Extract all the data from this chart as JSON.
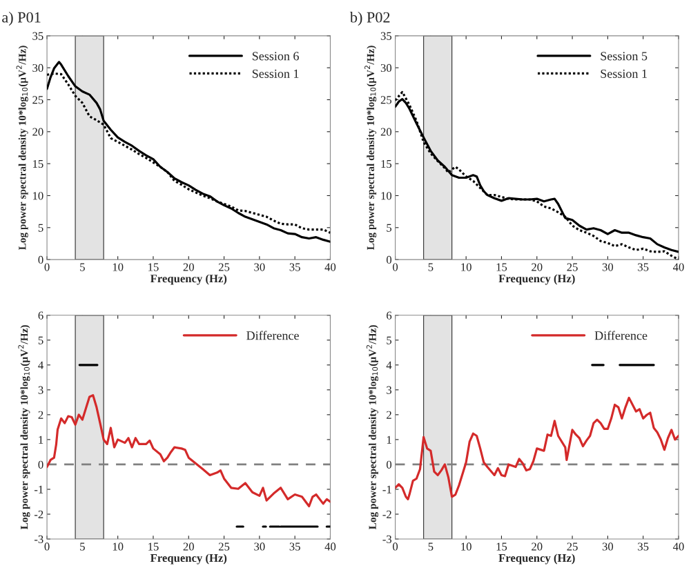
{
  "chart_data": [
    {
      "type": "line",
      "title": "a) P01",
      "xlabel": "Frequency (Hz)",
      "ylabel": "Log power spectral density 10*log$_{10}$(μV$^{2}$/Hz)",
      "xlim": [
        0,
        40
      ],
      "ylim": [
        0,
        35
      ],
      "xticks": [
        0,
        5,
        10,
        15,
        20,
        25,
        30,
        35,
        40
      ],
      "yticks": [
        0,
        5,
        10,
        15,
        20,
        25,
        30,
        35
      ],
      "grid": false,
      "legend": "top right",
      "bands": [
        {
          "axis": "x",
          "from": 4,
          "to": 8,
          "color": "#e3e3e3"
        }
      ],
      "series": [
        {
          "name": "Session 6",
          "color": "#000000",
          "line_style": "solid",
          "x": [
            0,
            0.5,
            1,
            1.7,
            2,
            3,
            4,
            5,
            6,
            7,
            7.5,
            8,
            9,
            10,
            11,
            12,
            13,
            14,
            15,
            16,
            17,
            18,
            19,
            20,
            21,
            22,
            23,
            24,
            25,
            26,
            27,
            28,
            29,
            30,
            31,
            32,
            33,
            34,
            35,
            36,
            37,
            38,
            39,
            40
          ],
          "values": [
            26.7,
            28.5,
            29.9,
            30.9,
            30.5,
            28.7,
            27.1,
            26.3,
            25.8,
            24.5,
            23.5,
            21.7,
            20.3,
            19.1,
            18.4,
            17.8,
            17.0,
            16.3,
            15.7,
            14.5,
            13.7,
            12.7,
            12.1,
            11.6,
            10.9,
            10.3,
            9.9,
            9.1,
            8.5,
            8.0,
            7.3,
            6.7,
            6.3,
            5.9,
            5.5,
            4.9,
            4.6,
            4.1,
            4.0,
            3.5,
            3.3,
            3.5,
            3.1,
            2.8
          ]
        },
        {
          "name": "Session 1",
          "color": "#000000",
          "line_style": "dotted",
          "x": [
            0,
            1,
            2,
            3,
            4,
            5,
            6,
            7,
            8,
            9,
            10,
            11,
            12,
            13,
            14,
            15,
            16,
            17,
            18,
            19,
            20,
            21,
            22,
            23,
            24,
            25,
            26,
            27,
            28,
            29,
            30,
            31,
            32,
            33,
            34,
            35,
            36,
            37,
            38,
            39,
            40
          ],
          "values": [
            28.9,
            29.1,
            29.0,
            27.4,
            25.6,
            24.5,
            22.4,
            21.8,
            21.1,
            19.0,
            18.4,
            17.8,
            17.2,
            16.5,
            15.9,
            15.2,
            14.5,
            13.7,
            12.3,
            11.7,
            11.0,
            10.5,
            10.0,
            9.6,
            9.1,
            8.7,
            8.3,
            7.7,
            7.6,
            7.3,
            7.0,
            6.7,
            6.1,
            5.6,
            5.5,
            5.5,
            4.9,
            4.7,
            4.7,
            4.7,
            4.2
          ]
        }
      ]
    },
    {
      "type": "line",
      "title": "b) P02",
      "xlabel": "Frequency (Hz)",
      "ylabel": "Log power spectral density 10*log$_{10}$(μV$^{2}$/Hz)",
      "xlim": [
        0,
        40
      ],
      "ylim": [
        0,
        35
      ],
      "xticks": [
        0,
        5,
        10,
        15,
        20,
        25,
        30,
        35,
        40
      ],
      "yticks": [
        0,
        5,
        10,
        15,
        20,
        25,
        30,
        35
      ],
      "grid": false,
      "legend": "top right",
      "bands": [
        {
          "axis": "x",
          "from": 4,
          "to": 8,
          "color": "#e3e3e3"
        }
      ],
      "series": [
        {
          "name": "Session 5",
          "color": "#000000",
          "line_style": "solid",
          "x": [
            0,
            0.5,
            1,
            1.5,
            2,
            3,
            3.5,
            4,
            5,
            6,
            7,
            8,
            9,
            10,
            11,
            11.5,
            12,
            12.5,
            13,
            14,
            15,
            16,
            17,
            18,
            19,
            20,
            21,
            22,
            22.5,
            23,
            24,
            25,
            26,
            27,
            28,
            29,
            30,
            31,
            32,
            33,
            34,
            35,
            36,
            37,
            38,
            39,
            40
          ],
          "values": [
            23.9,
            24.7,
            25.1,
            24.5,
            23.6,
            21.3,
            20.2,
            19.1,
            17.0,
            15.5,
            14.5,
            13.2,
            12.8,
            12.8,
            13.2,
            13.0,
            11.6,
            10.7,
            10.1,
            9.6,
            9.2,
            9.6,
            9.5,
            9.4,
            9.4,
            9.5,
            9.1,
            9.4,
            9.5,
            8.7,
            6.5,
            6.2,
            5.3,
            4.7,
            4.9,
            4.6,
            4.0,
            4.6,
            4.2,
            4.2,
            3.8,
            3.5,
            3.3,
            2.4,
            1.9,
            1.5,
            1.2
          ]
        },
        {
          "name": "Session 1",
          "color": "#000000",
          "line_style": "dotted",
          "x": [
            0,
            1,
            2,
            3,
            4,
            5,
            6,
            7,
            7.5,
            8,
            8.5,
            9,
            10,
            11,
            12,
            13,
            14,
            15,
            16,
            17,
            18,
            19,
            20,
            21,
            22,
            23,
            24,
            25,
            26,
            27,
            28,
            29,
            30,
            31,
            32,
            33,
            34,
            35,
            36,
            37,
            38,
            39,
            40
          ],
          "values": [
            24.9,
            26.2,
            24.2,
            21.7,
            18.4,
            16.6,
            15.4,
            14.3,
            13.6,
            14.1,
            14.5,
            14.1,
            13.0,
            12.3,
            11.2,
            10.1,
            10.1,
            9.8,
            9.5,
            9.4,
            9.4,
            9.4,
            9.1,
            8.3,
            8.0,
            7.4,
            6.7,
            5.3,
            4.6,
            4.2,
            3.7,
            2.9,
            2.6,
            2.1,
            2.4,
            1.9,
            1.5,
            1.7,
            1.3,
            1.2,
            1.3,
            0.6,
            0
          ]
        }
      ]
    },
    {
      "type": "line",
      "xlabel": "Frequency (Hz)",
      "ylabel": "Log power spectral density 10*log$_{10}$(μV$^{2}$/Hz)",
      "xlim": [
        0,
        40
      ],
      "ylim": [
        -3,
        6
      ],
      "xticks": [
        0,
        5,
        10,
        15,
        20,
        25,
        30,
        35,
        40
      ],
      "yticks": [
        -3,
        -2,
        -1,
        0,
        1,
        2,
        3,
        4,
        5,
        6
      ],
      "grid": false,
      "legend": "top right",
      "bands": [
        {
          "axis": "x",
          "from": 4,
          "to": 8,
          "color": "#e3e3e3"
        }
      ],
      "ref_lines": [
        {
          "axis": "y",
          "value": 0,
          "color": "#808080",
          "line_style": "dashed"
        }
      ],
      "series": [
        {
          "name": "Difference",
          "color": "#d42a2a",
          "line_style": "solid",
          "x": [
            0,
            0.5,
            1,
            1.3,
            1.5,
            2,
            2.5,
            3,
            3.5,
            4,
            4.5,
            5,
            5.5,
            6,
            6.5,
            7,
            7.5,
            8,
            8.5,
            9,
            9.5,
            10,
            11,
            11.5,
            12,
            12.5,
            13,
            14,
            14.5,
            15,
            16,
            16.5,
            17,
            17.5,
            18,
            19,
            19.5,
            20,
            21,
            22,
            23,
            24,
            24.5,
            25,
            26,
            27,
            28,
            29,
            30,
            30.5,
            31,
            32,
            33,
            34,
            35,
            36,
            37,
            37.5,
            38,
            39,
            39.5,
            40
          ],
          "values": [
            -0.1,
            0.18,
            0.27,
            0.8,
            1.4,
            1.85,
            1.66,
            1.94,
            1.9,
            1.6,
            2.0,
            1.8,
            2.26,
            2.72,
            2.78,
            2.3,
            1.66,
            1.0,
            0.82,
            1.47,
            0.69,
            1.0,
            0.87,
            1.06,
            0.69,
            1.06,
            0.82,
            0.82,
            0.96,
            0.64,
            0.41,
            0.13,
            0.27,
            0.5,
            0.69,
            0.64,
            0.59,
            0.27,
            0.04,
            -0.19,
            -0.43,
            -0.33,
            -0.24,
            -0.57,
            -0.94,
            -0.98,
            -0.75,
            -1.12,
            -1.26,
            -0.94,
            -1.45,
            -1.17,
            -0.94,
            -1.4,
            -1.21,
            -1.3,
            -1.68,
            -1.3,
            -1.21,
            -1.58,
            -1.4,
            -1.5
          ]
        },
        {
          "color": "#000000",
          "line_style": "solid",
          "x": [
            4.6,
            7.1
          ],
          "values": [
            4,
            4
          ]
        },
        {
          "color": "#000000",
          "line_style": "solid",
          "x": [
            26.8,
            27.7,
            27.8,
            30.5,
            30.9,
            31.0,
            31.5,
            32.8,
            32.9,
            33.0,
            38.2,
            38.3,
            39.5,
            40
          ],
          "values": [
            -2.5,
            -2.5,
            null,
            -2.5,
            -2.5,
            null,
            -2.5,
            -2.5,
            null,
            -2.5,
            -2.5,
            null,
            -2.5,
            -2.5
          ]
        }
      ]
    },
    {
      "type": "line",
      "xlabel": "Frequency (Hz)",
      "ylabel": "Log power spectral density 10*log$_{10}$(μV$^{2}$/Hz)",
      "xlim": [
        0,
        40
      ],
      "ylim": [
        -3,
        6
      ],
      "xticks": [
        0,
        5,
        10,
        15,
        20,
        25,
        30,
        35,
        40
      ],
      "yticks": [
        -3,
        -2,
        -1,
        0,
        1,
        2,
        3,
        4,
        5,
        6
      ],
      "grid": false,
      "legend": "top right",
      "bands": [
        {
          "axis": "x",
          "from": 4,
          "to": 8,
          "color": "#e3e3e3"
        }
      ],
      "ref_lines": [
        {
          "axis": "y",
          "value": 0,
          "color": "#808080",
          "line_style": "dashed"
        }
      ],
      "series": [
        {
          "name": "Difference",
          "color": "#d42a2a",
          "line_style": "solid",
          "x": [
            0,
            0.5,
            1,
            1.5,
            1.8,
            2,
            2.5,
            3,
            3.5,
            4,
            4.5,
            5,
            5.5,
            6,
            6.5,
            7,
            7.5,
            8,
            8.5,
            9,
            10,
            10.5,
            11,
            11.5,
            12,
            12.5,
            13,
            14,
            14.5,
            15,
            15.5,
            16,
            17,
            17.5,
            18,
            18.5,
            19,
            19.5,
            20,
            21,
            21.5,
            22,
            22.5,
            23,
            24,
            24.2,
            25,
            25.5,
            26,
            26.5,
            27,
            27.5,
            28,
            28.5,
            29,
            29.5,
            30,
            30.5,
            31,
            31.5,
            32,
            32.5,
            33,
            34,
            34.5,
            35,
            35.5,
            36,
            36.5,
            37,
            37.5,
            38,
            38.5,
            39,
            39.5,
            40
          ],
          "values": [
            -0.94,
            -0.8,
            -0.94,
            -1.3,
            -1.4,
            -1.21,
            -0.66,
            -0.57,
            -0.19,
            1.1,
            0.64,
            0.55,
            -0.29,
            -0.43,
            -0.24,
            0,
            -0.52,
            -1.3,
            -1.21,
            -0.84,
            0.08,
            0.92,
            1.24,
            1.15,
            0.64,
            0.08,
            -0.1,
            -0.43,
            -0.15,
            -0.43,
            -0.47,
            0,
            -0.1,
            0.22,
            0.04,
            -0.24,
            -0.19,
            0.13,
            0.64,
            0.55,
            1.2,
            1.15,
            1.75,
            1.15,
            0.69,
            0.18,
            1.39,
            1.2,
            1.06,
            0.73,
            0.96,
            1.15,
            1.66,
            1.8,
            1.66,
            1.43,
            1.43,
            1.85,
            2.4,
            2.3,
            1.85,
            2.3,
            2.68,
            2.13,
            2.22,
            1.85,
            1.99,
            2.08,
            1.47,
            1.29,
            1.0,
            0.59,
            1.06,
            1.39,
            1.0,
            1.15
          ]
        },
        {
          "color": "#000000",
          "line_style": "solid",
          "x": [
            27.8,
            29.4,
            29.5,
            31.7,
            36.5
          ],
          "values": [
            4,
            4,
            null,
            4,
            4
          ]
        }
      ]
    }
  ]
}
